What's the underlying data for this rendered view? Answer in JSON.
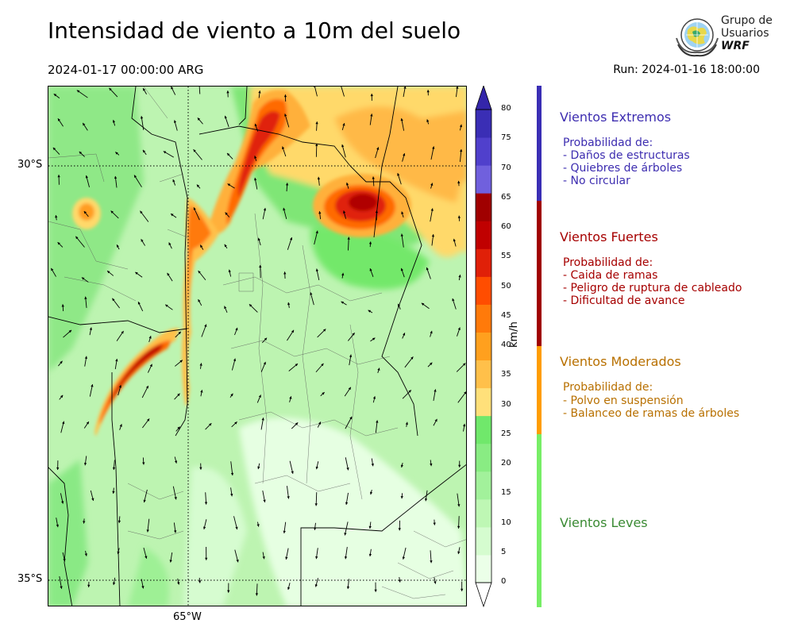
{
  "header": {
    "title": "Intensidad de viento a 10m del suelo",
    "valid_time": "2024-01-17 00:00:00 ARG",
    "run_time": "Run: 2024-01-16 18:00:00"
  },
  "logo": {
    "line1": "Grupo de",
    "line2": "Usuarios",
    "line3": "WRF"
  },
  "map": {
    "lat_labels": [
      "30°S",
      "35°S"
    ],
    "lon_labels": [
      "65°W"
    ]
  },
  "colorbar": {
    "unit": "km/h",
    "ticks": [
      "0",
      "5",
      "10",
      "15",
      "20",
      "25",
      "30",
      "35",
      "40",
      "45",
      "50",
      "55",
      "60",
      "65",
      "70",
      "75",
      "80"
    ],
    "colors": [
      "#ebffe8",
      "#d5fccf",
      "#bef7b4",
      "#a2f19b",
      "#89ec83",
      "#70e86b",
      "#ffe07a",
      "#ffc04a",
      "#ffa01e",
      "#ff7a0a",
      "#ff4d00",
      "#e02008",
      "#c00000",
      "#a00000",
      "#7060dd",
      "#5040cc",
      "#3a2eb5"
    ],
    "extend_colors": {
      "low": "#ffffff",
      "high": "#3426aa"
    }
  },
  "legend": {
    "colors": {
      "extremos": "#3a2eb5",
      "fuertes": "#a00000",
      "moderados": "#ff9d00",
      "leves": "#77ee66"
    },
    "text_colors": {
      "extremos": "#3d2db0",
      "fuertes": "#a60000",
      "moderados": "#b87000",
      "leves": "#3a8a33"
    },
    "extremos": {
      "title": "Vientos Extremos",
      "prob": "Probabilidad de:",
      "items": [
        "- Daños de estructuras",
        "- Quiebres de árboles",
        "- No circular"
      ]
    },
    "fuertes": {
      "title": "Vientos Fuertes",
      "prob": "Probabilidad de:",
      "items": [
        "- Caida de ramas",
        "- Peligro de ruptura de cableado",
        "- Dificultad de avance"
      ]
    },
    "moderados": {
      "title": "Vientos Moderados",
      "prob": "Probabilidad de:",
      "items": [
        "- Polvo en suspensión",
        "- Balanceo de ramas de árboles"
      ]
    },
    "leves": {
      "title": "Vientos Leves"
    }
  }
}
